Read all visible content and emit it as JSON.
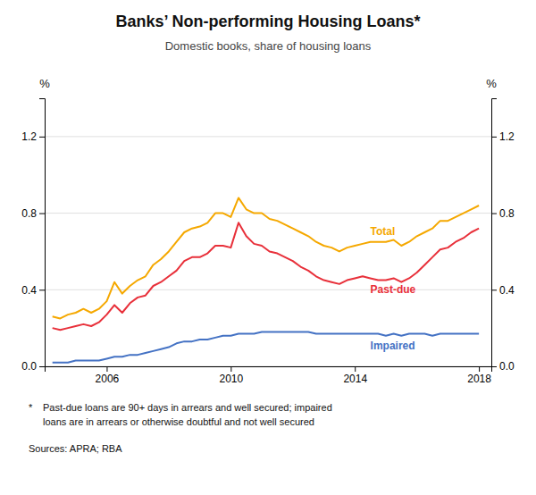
{
  "chart_data": {
    "type": "line",
    "title": "Banks’ Non-performing Housing Loans*",
    "subtitle": "Domestic books, share of housing loans",
    "ylabel": "%",
    "y2label": "%",
    "footnote_marker": "*",
    "footnote": [
      "Past-due loans are 90+ days in arrears and well secured; impaired",
      "loans are in arrears or otherwise doubtful and not well secured"
    ],
    "source": "Sources: APRA; RBA",
    "x": [
      2004.25,
      2004.5,
      2004.75,
      2005.0,
      2005.25,
      2005.5,
      2005.75,
      2006.0,
      2006.25,
      2006.5,
      2006.75,
      2007.0,
      2007.25,
      2007.5,
      2007.75,
      2008.0,
      2008.25,
      2008.5,
      2008.75,
      2009.0,
      2009.25,
      2009.5,
      2009.75,
      2010.0,
      2010.25,
      2010.5,
      2010.75,
      2011.0,
      2011.25,
      2011.5,
      2011.75,
      2012.0,
      2012.25,
      2012.5,
      2012.75,
      2013.0,
      2013.25,
      2013.5,
      2013.75,
      2014.0,
      2014.25,
      2014.5,
      2014.75,
      2015.0,
      2015.25,
      2015.5,
      2015.75,
      2016.0,
      2016.25,
      2016.5,
      2016.75,
      2017.0,
      2017.25,
      2017.5,
      2017.75,
      2018.0
    ],
    "series": [
      {
        "name": "Total",
        "color": "#f5a800",
        "values": [
          0.26,
          0.25,
          0.27,
          0.28,
          0.3,
          0.28,
          0.3,
          0.34,
          0.44,
          0.38,
          0.42,
          0.45,
          0.47,
          0.53,
          0.56,
          0.6,
          0.65,
          0.7,
          0.72,
          0.73,
          0.75,
          0.8,
          0.8,
          0.78,
          0.88,
          0.82,
          0.8,
          0.8,
          0.77,
          0.76,
          0.74,
          0.72,
          0.7,
          0.68,
          0.65,
          0.63,
          0.62,
          0.6,
          0.62,
          0.63,
          0.64,
          0.65,
          0.65,
          0.65,
          0.66,
          0.63,
          0.65,
          0.68,
          0.7,
          0.72,
          0.76,
          0.76,
          0.78,
          0.8,
          0.82,
          0.84
        ]
      },
      {
        "name": "Past-due",
        "color": "#e8303a",
        "values": [
          0.2,
          0.19,
          0.2,
          0.21,
          0.22,
          0.21,
          0.23,
          0.27,
          0.32,
          0.28,
          0.33,
          0.36,
          0.37,
          0.42,
          0.44,
          0.47,
          0.5,
          0.55,
          0.57,
          0.57,
          0.59,
          0.63,
          0.63,
          0.62,
          0.75,
          0.68,
          0.64,
          0.63,
          0.6,
          0.59,
          0.57,
          0.55,
          0.52,
          0.5,
          0.47,
          0.45,
          0.44,
          0.43,
          0.45,
          0.46,
          0.47,
          0.46,
          0.45,
          0.45,
          0.46,
          0.44,
          0.46,
          0.49,
          0.53,
          0.57,
          0.61,
          0.62,
          0.65,
          0.67,
          0.7,
          0.72
        ]
      },
      {
        "name": "Impaired",
        "color": "#4472c4",
        "values": [
          0.02,
          0.02,
          0.02,
          0.03,
          0.03,
          0.03,
          0.03,
          0.04,
          0.05,
          0.05,
          0.06,
          0.06,
          0.07,
          0.08,
          0.09,
          0.1,
          0.12,
          0.13,
          0.13,
          0.14,
          0.14,
          0.15,
          0.16,
          0.16,
          0.17,
          0.17,
          0.17,
          0.18,
          0.18,
          0.18,
          0.18,
          0.18,
          0.18,
          0.18,
          0.17,
          0.17,
          0.17,
          0.17,
          0.17,
          0.17,
          0.17,
          0.17,
          0.17,
          0.16,
          0.17,
          0.16,
          0.17,
          0.17,
          0.17,
          0.16,
          0.17,
          0.17,
          0.17,
          0.17,
          0.17,
          0.17
        ]
      }
    ],
    "xlim": [
      2004.0,
      2018.4
    ],
    "xticks": [
      2006,
      2010,
      2014,
      2018
    ],
    "ylim": [
      0,
      1.4
    ],
    "yticks": [
      {
        "value": 0.0,
        "label": "0.0"
      },
      0.4,
      0.8,
      1.2
    ],
    "y2lim": [
      0,
      1.4
    ],
    "y2ticks": [
      {
        "value": 0.0,
        "label": "0.0"
      },
      0.4,
      0.8,
      1.2
    ],
    "grid": true
  }
}
